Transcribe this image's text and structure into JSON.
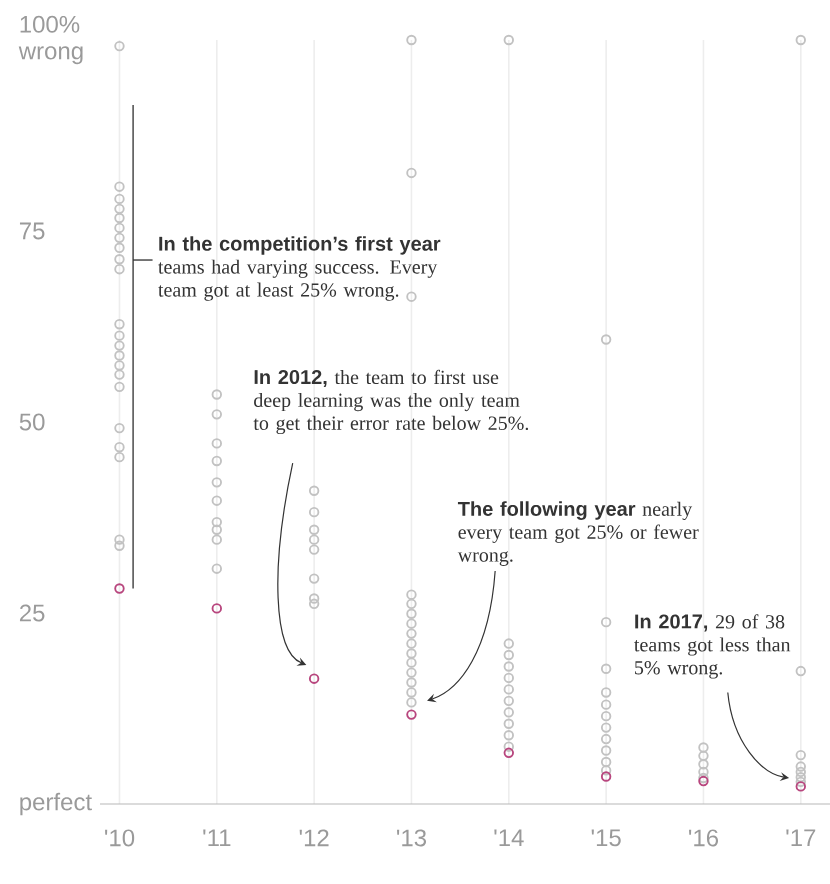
{
  "chart_data": {
    "type": "scatter",
    "marker": "circle",
    "grid": "x",
    "xlim": [
      2009.8,
      2017.3
    ],
    "ylim": [
      0,
      100
    ],
    "xticks": [
      {
        "value": 2010,
        "label": "'10"
      },
      {
        "value": 2011,
        "label": "'11"
      },
      {
        "value": 2012,
        "label": "'12"
      },
      {
        "value": 2013,
        "label": "'13"
      },
      {
        "value": 2014,
        "label": "'14"
      },
      {
        "value": 2015,
        "label": "'15"
      },
      {
        "value": 2016,
        "label": "'16"
      },
      {
        "value": 2017,
        "label": "'17"
      }
    ],
    "yticks": [
      {
        "value": 0,
        "label": "perfect"
      },
      25,
      50,
      75,
      {
        "value": 100,
        "label": "100% wrong"
      }
    ],
    "series": [
      {
        "color": "#c2c2c2",
        "x": [
          2010,
          2010,
          2010,
          2010,
          2010,
          2010,
          2010,
          2010,
          2010,
          2010,
          2010,
          2010,
          2010,
          2010,
          2010,
          2010,
          2010,
          2010,
          2010,
          2010,
          2010,
          2010,
          2011,
          2011,
          2011,
          2011,
          2011,
          2011,
          2011,
          2011,
          2011,
          2011,
          2012,
          2012,
          2012,
          2012,
          2012,
          2012,
          2012,
          2012,
          2013,
          2013,
          2013,
          2013,
          2013,
          2013,
          2013,
          2013,
          2013,
          2013,
          2013,
          2013,
          2013,
          2013,
          2013,
          2014,
          2014,
          2014,
          2014,
          2014,
          2014,
          2014,
          2014,
          2014,
          2014,
          2014,
          2015,
          2015,
          2015,
          2015,
          2015,
          2015,
          2015,
          2015,
          2015,
          2015,
          2015,
          2016,
          2016,
          2016,
          2016,
          2016,
          2017,
          2017,
          2017,
          2017,
          2017,
          2017,
          2017
        ],
        "values": [
          99.2,
          80.8,
          79.2,
          77.9,
          76.7,
          75.4,
          74.1,
          72.8,
          71.3,
          70.0,
          62.8,
          61.3,
          60.0,
          58.7,
          57.4,
          56.2,
          54.6,
          49.2,
          46.7,
          45.4,
          34.6,
          33.8,
          53.6,
          51.0,
          47.2,
          44.9,
          42.1,
          39.7,
          36.9,
          35.9,
          34.6,
          30.8,
          41.0,
          38.2,
          35.9,
          34.6,
          33.3,
          29.5,
          26.9,
          26.2,
          100,
          82.6,
          66.4,
          27.4,
          26.2,
          24.9,
          23.6,
          22.3,
          21.0,
          19.7,
          18.5,
          17.2,
          15.9,
          14.6,
          13.3,
          100,
          21.0,
          19.5,
          18.0,
          16.5,
          15.0,
          13.5,
          12.0,
          10.5,
          9.0,
          7.5,
          60.8,
          23.8,
          17.7,
          14.6,
          13.0,
          11.5,
          10.0,
          8.5,
          7.0,
          5.5,
          4.4,
          7.4,
          6.3,
          5.2,
          4.2,
          3.4,
          100,
          17.4,
          6.4,
          4.9,
          4.2,
          3.5,
          2.9
        ]
      },
      {
        "color": "#b8467e",
        "x": [
          2010,
          2011,
          2012,
          2013,
          2014,
          2015,
          2016,
          2017
        ],
        "values": [
          28.2,
          25.6,
          16.4,
          11.7,
          6.7,
          3.6,
          3.0,
          2.3
        ]
      }
    ],
    "annotations": [
      "**In the competition’s first year** teams had varying success. Every team got at least 25% wrong.",
      "**In 2012,** the team to first use deep learning was the only team to get their error rate below 25%.",
      "**The following year** nearly every team got 25% or fewer wrong.",
      "**In 2017,** 29 of 38 teams got less than 5% wrong."
    ]
  }
}
